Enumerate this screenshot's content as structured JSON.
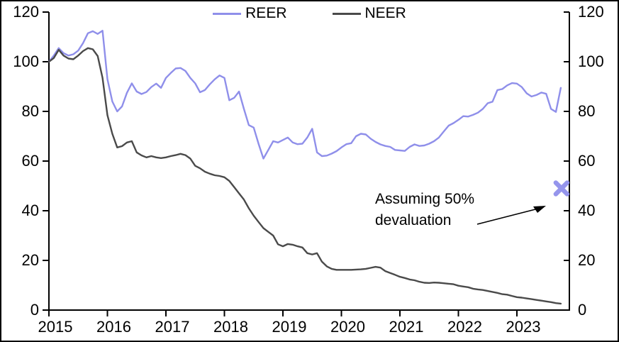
{
  "chart_data": {
    "type": "line",
    "title": "",
    "xlabel": "",
    "ylabel": "",
    "ylim": [
      0,
      120
    ],
    "y_ticks": [
      0,
      20,
      40,
      60,
      80,
      100,
      120
    ],
    "dual_y_axis": true,
    "grid": false,
    "legend_position": "top-center",
    "x_frequency": "monthly",
    "x_range": "Jan 2015 - Oct 2023",
    "x_year_ticks": [
      "2015",
      "2016",
      "2017",
      "2018",
      "2019",
      "2020",
      "2021",
      "2022",
      "2023"
    ],
    "series": [
      {
        "name": "REER",
        "color": "#8f8fea",
        "values": [
          100,
          102.5,
          105.5,
          103.5,
          102.5,
          103,
          104.5,
          107.5,
          111.5,
          112.3,
          111.2,
          112.5,
          93,
          84,
          80,
          82,
          87.5,
          91.3,
          88,
          87,
          87.8,
          89.8,
          91.2,
          89.5,
          93.5,
          95.5,
          97.3,
          97.5,
          96.3,
          93.5,
          91.3,
          87.7,
          88.6,
          90.9,
          92.9,
          94.5,
          93.5,
          84.5,
          85.5,
          88,
          81,
          74.5,
          73.5,
          67,
          61,
          64.5,
          68,
          67.5,
          68.5,
          69.5,
          67.5,
          66.8,
          67,
          69.5,
          73,
          63.5,
          62,
          62.2,
          63,
          64,
          65.5,
          66.8,
          67.2,
          70,
          71,
          70.7,
          69,
          67.7,
          66.7,
          66.1,
          65.7,
          64.5,
          64.3,
          64.1,
          65.7,
          66.7,
          66.1,
          66.3,
          67,
          68,
          69.5,
          71.9,
          74.3,
          75.3,
          76.6,
          78.1,
          77.9,
          78.6,
          79.5,
          81,
          83.3,
          83.9,
          88.6,
          89,
          90.5,
          91.4,
          91.2,
          89.8,
          87.3,
          86,
          86.6,
          87.6,
          87.1,
          81,
          79.8,
          89.5
        ]
      },
      {
        "name": "NEER",
        "color": "#4a4a4a",
        "values": [
          100,
          101.5,
          104.8,
          102.5,
          101.3,
          101,
          102.5,
          104.3,
          105.5,
          105,
          102.3,
          93.5,
          78.5,
          71,
          65.5,
          66,
          67.5,
          68,
          63.5,
          62.3,
          61.5,
          62,
          61.5,
          61.2,
          61.5,
          62,
          62.4,
          62.9,
          62.4,
          61,
          58.1,
          57.1,
          55.7,
          54.9,
          54.3,
          54,
          53.5,
          52,
          49.5,
          47,
          44.5,
          41,
          38,
          35.5,
          33,
          31.5,
          30,
          26.5,
          25.7,
          26.6,
          26.3,
          25.7,
          25.2,
          22.9,
          22.4,
          22.9,
          19.5,
          17.6,
          16.6,
          16.2,
          16.2,
          16.2,
          16.2,
          16.3,
          16.4,
          16.6,
          17,
          17.4,
          17.1,
          15.7,
          14.9,
          14.2,
          13.4,
          12.9,
          12.3,
          12,
          11.4,
          11,
          10.9,
          11.1,
          11,
          10.8,
          10.6,
          10.4,
          9.8,
          9.5,
          9.2,
          8.6,
          8.3,
          8.1,
          7.7,
          7.3,
          6.9,
          6.4,
          6.2,
          5.7,
          5.2,
          5,
          4.7,
          4.4,
          4.1,
          3.8,
          3.5,
          3.2,
          2.8,
          2.6
        ]
      }
    ],
    "scenario_marker": {
      "shape": "x",
      "color": "#9595ec",
      "value": 49,
      "x_month_index": 105,
      "meaning": "Assuming 50% devaluation"
    }
  },
  "legend": {
    "items": [
      {
        "label": "REER"
      },
      {
        "label": "NEER"
      }
    ]
  },
  "annotation": {
    "line1": "Assuming 50%",
    "line2": "devaluation"
  },
  "axes": {
    "left_tick_labels": [
      "120",
      "100",
      "80",
      "60",
      "40",
      "20",
      "0"
    ],
    "right_tick_labels": [
      "120",
      "100",
      "80",
      "60",
      "40",
      "20",
      "0"
    ],
    "x_tick_labels": [
      "2015",
      "2016",
      "2017",
      "2018",
      "2019",
      "2020",
      "2021",
      "2022",
      "2023"
    ]
  },
  "colors": {
    "reer_line": "#8f8fea",
    "neer_line": "#4a4a4a",
    "marker": "#9595ec",
    "axis": "#000000"
  }
}
